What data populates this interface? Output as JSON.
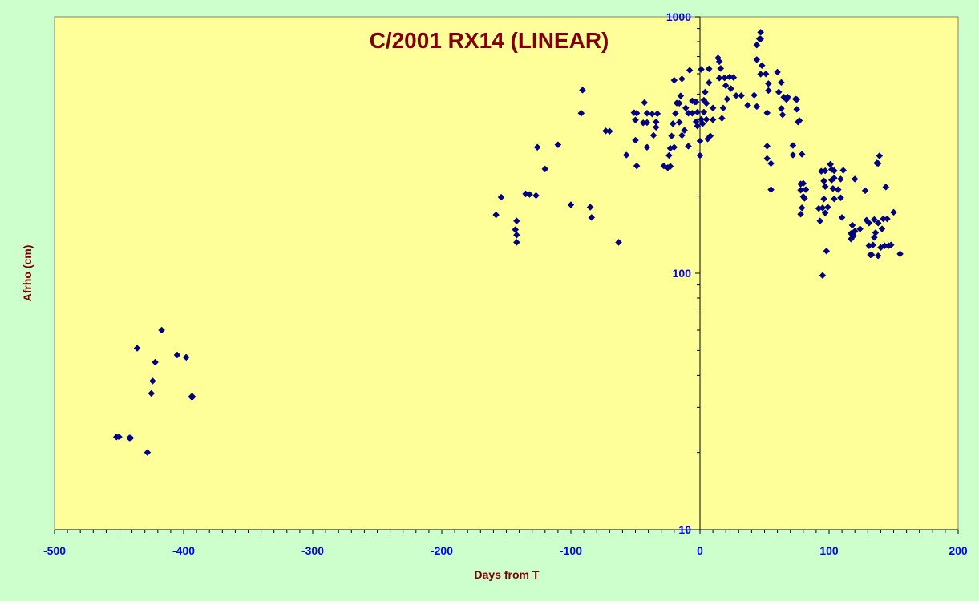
{
  "chart_data": {
    "type": "scatter",
    "title": "C/2001 RX14 (LINEAR)",
    "xlabel": "Days from T",
    "ylabel": "Afrho (cm)",
    "xlim": [
      -500,
      200
    ],
    "ylim": [
      10,
      1000
    ],
    "yscale": "log",
    "x_ticks": [
      "-500",
      "-400",
      "-300",
      "-200",
      "-100",
      "0",
      "100",
      "200"
    ],
    "y_ticks": [
      "10",
      "100",
      "1000"
    ],
    "grid": false,
    "legend": "none",
    "colors": {
      "background": "#ccffcc",
      "plot_area": "#ffff99",
      "marker": "#000080",
      "title": "#800000",
      "axis_label": "#800000",
      "tick_label": "#0000ff"
    },
    "series": [
      {
        "marker": "diamond",
        "points": [
          [
            -452,
            23
          ],
          [
            -450,
            23
          ],
          [
            -442,
            22.8
          ],
          [
            -441,
            22.8
          ],
          [
            -436,
            51
          ],
          [
            -428,
            20
          ],
          [
            -425,
            34
          ],
          [
            -424,
            38
          ],
          [
            -422,
            45
          ],
          [
            -417,
            60
          ],
          [
            -405,
            48
          ],
          [
            -398,
            47
          ],
          [
            -394,
            33
          ],
          [
            -393,
            33
          ],
          [
            -158,
            169
          ],
          [
            -154,
            198
          ],
          [
            -143,
            148
          ],
          [
            -142,
            160
          ],
          [
            -142,
            141
          ],
          [
            -142,
            132
          ],
          [
            -135,
            204
          ],
          [
            -132,
            203
          ],
          [
            -127,
            201
          ],
          [
            -126,
            310
          ],
          [
            -120,
            255
          ],
          [
            -110,
            317
          ],
          [
            -100,
            185
          ],
          [
            -92,
            421
          ],
          [
            -91,
            518
          ],
          [
            -85,
            181
          ],
          [
            -84,
            165
          ],
          [
            -73,
            359
          ],
          [
            -70,
            358
          ],
          [
            -63,
            132
          ],
          [
            -57,
            289
          ],
          [
            -51,
            423
          ],
          [
            -50,
            396
          ],
          [
            -50,
            330
          ],
          [
            -49,
            262
          ],
          [
            -49,
            421
          ],
          [
            -44,
            386
          ],
          [
            -43,
            463
          ],
          [
            -41,
            421
          ],
          [
            -41,
            387
          ],
          [
            -41,
            310
          ],
          [
            -37,
            418
          ],
          [
            -36,
            345
          ],
          [
            -34,
            371
          ],
          [
            -34,
            389
          ],
          [
            -33,
            419
          ],
          [
            -28,
            262
          ],
          [
            -25,
            258
          ],
          [
            -24,
            288
          ],
          [
            -23,
            307
          ],
          [
            -23,
            261
          ],
          [
            -22,
            343
          ],
          [
            -21,
            383
          ],
          [
            -20,
            566
          ],
          [
            -20,
            310
          ],
          [
            -19,
            420
          ],
          [
            -18,
            461
          ],
          [
            -16,
            388
          ],
          [
            -16,
            460
          ],
          [
            -15,
            492
          ],
          [
            -14,
            573
          ],
          [
            -14,
            345
          ],
          [
            -12,
            361
          ],
          [
            -11,
            441
          ],
          [
            -9,
            421
          ],
          [
            -9,
            313
          ],
          [
            -8,
            619
          ],
          [
            -6,
            470
          ],
          [
            -6,
            421
          ],
          [
            -4,
            466
          ],
          [
            -3,
            390
          ],
          [
            -3,
            466
          ],
          [
            -2,
            425
          ],
          [
            -2,
            375
          ],
          [
            0,
            328
          ],
          [
            0,
            288
          ],
          [
            1,
            624
          ],
          [
            1,
            398
          ],
          [
            2,
            383
          ],
          [
            3,
            473
          ],
          [
            3,
            425
          ],
          [
            4,
            509
          ],
          [
            5,
            460
          ],
          [
            5,
            398
          ],
          [
            6,
            334
          ],
          [
            7,
            554
          ],
          [
            7,
            627
          ],
          [
            8,
            343
          ],
          [
            10,
            441
          ],
          [
            10,
            397
          ],
          [
            14,
            691
          ],
          [
            15,
            669
          ],
          [
            15,
            577
          ],
          [
            16,
            629
          ],
          [
            17,
            402
          ],
          [
            18,
            441
          ],
          [
            19,
            578
          ],
          [
            20,
            539
          ],
          [
            21,
            478
          ],
          [
            23,
            583
          ],
          [
            24,
            525
          ],
          [
            26,
            580
          ],
          [
            28,
            493
          ],
          [
            32,
            493
          ],
          [
            37,
            452
          ],
          [
            42,
            495
          ],
          [
            44,
            447
          ],
          [
            44,
            776
          ],
          [
            44,
            681
          ],
          [
            46,
            821
          ],
          [
            47,
            598
          ],
          [
            47,
            870
          ],
          [
            47,
            819
          ],
          [
            48,
            646
          ],
          [
            51,
            599
          ],
          [
            52,
            313
          ],
          [
            52,
            280
          ],
          [
            52,
            422
          ],
          [
            53,
            549
          ],
          [
            53,
            516
          ],
          [
            55,
            268
          ],
          [
            55,
            212
          ],
          [
            60,
            609
          ],
          [
            61,
            509
          ],
          [
            63,
            555
          ],
          [
            63,
            439
          ],
          [
            64,
            415
          ],
          [
            65,
            486
          ],
          [
            67,
            476
          ],
          [
            68,
            486
          ],
          [
            72,
            315
          ],
          [
            72,
            289
          ],
          [
            74,
            478
          ],
          [
            75,
            476
          ],
          [
            75,
            436
          ],
          [
            76,
            389
          ],
          [
            77,
            394
          ],
          [
            78,
            223
          ],
          [
            78,
            211
          ],
          [
            78,
            170
          ],
          [
            79,
            180
          ],
          [
            79,
            291
          ],
          [
            80,
            199
          ],
          [
            80,
            224
          ],
          [
            81,
            196
          ],
          [
            82,
            212
          ],
          [
            92,
            179
          ],
          [
            93,
            160
          ],
          [
            94,
            250
          ],
          [
            95,
            98
          ],
          [
            95,
            180
          ],
          [
            96,
            195
          ],
          [
            96,
            229
          ],
          [
            97,
            251
          ],
          [
            97,
            218
          ],
          [
            97,
            172
          ],
          [
            98,
            122
          ],
          [
            99,
            181
          ],
          [
            101,
            266
          ],
          [
            101,
            266
          ],
          [
            102,
            254
          ],
          [
            102,
            231
          ],
          [
            103,
            214
          ],
          [
            104,
            235
          ],
          [
            104,
            251
          ],
          [
            104,
            195
          ],
          [
            107,
            212
          ],
          [
            109,
            233
          ],
          [
            109,
            197
          ],
          [
            110,
            165
          ],
          [
            111,
            252
          ],
          [
            117,
            143
          ],
          [
            117,
            136
          ],
          [
            118,
            154
          ],
          [
            119,
            140
          ],
          [
            120,
            233
          ],
          [
            120,
            146
          ],
          [
            124,
            149
          ],
          [
            128,
            210
          ],
          [
            129,
            161
          ],
          [
            131,
            157
          ],
          [
            131,
            128
          ],
          [
            132,
            118
          ],
          [
            133,
            118
          ],
          [
            134,
            129
          ],
          [
            135,
            162
          ],
          [
            135,
            138
          ],
          [
            136,
            144
          ],
          [
            137,
            269
          ],
          [
            138,
            268
          ],
          [
            138,
            157
          ],
          [
            138,
            117
          ],
          [
            139,
            287
          ],
          [
            140,
            126
          ],
          [
            141,
            149
          ],
          [
            142,
            163
          ],
          [
            143,
            128
          ],
          [
            144,
            217
          ],
          [
            145,
            163
          ],
          [
            146,
            128
          ],
          [
            148,
            129
          ],
          [
            150,
            173
          ],
          [
            155,
            119
          ]
        ]
      }
    ]
  }
}
